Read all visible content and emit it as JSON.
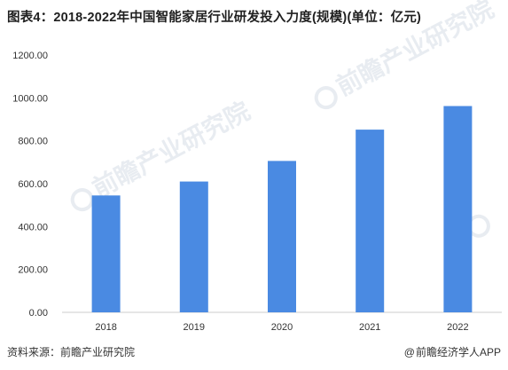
{
  "title": "图表4：2018-2022年中国智能家居行业研发投入力度(规模)(单位：亿元)",
  "source_label": "资料来源：前瞻产业研究院",
  "footer_right": "前瞻经济学人APP",
  "watermark_text": "前瞻产业研究院",
  "watermark_small": "",
  "colors": {
    "bar": "#4a8ae2",
    "axis": "#cccccc",
    "text": "#333333"
  },
  "chart_data": {
    "type": "bar",
    "categories": [
      "2018",
      "2019",
      "2020",
      "2021",
      "2022"
    ],
    "values": [
      545,
      610,
      706,
      852,
      962
    ],
    "ylim": [
      0,
      1200
    ],
    "yticks": [
      "0.00",
      "200.00",
      "400.00",
      "600.00",
      "800.00",
      "1000.00",
      "1200.00"
    ],
    "grid": false,
    "legend": "none"
  }
}
